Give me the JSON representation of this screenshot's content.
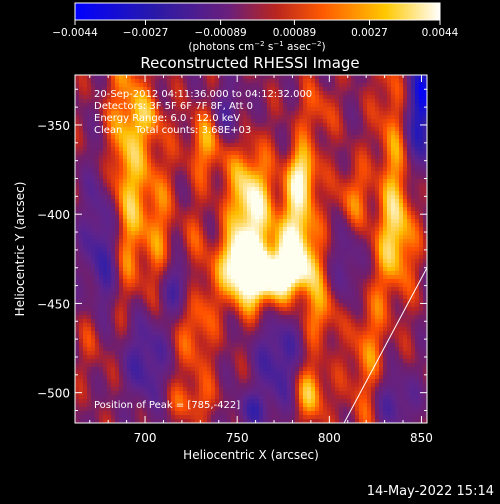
{
  "colorbar": {
    "tick_labels": [
      "−0.0044",
      "−0.0027",
      "−0.00089",
      "0.00089",
      "0.0027",
      "0.0044"
    ],
    "tick_values": [
      -0.0044,
      -0.0027,
      -0.00089,
      0.00089,
      0.0027,
      0.0044
    ],
    "range": [
      -0.0044,
      0.0044
    ],
    "unit_label_parts": [
      "(photons cm",
      "−2",
      " s",
      "−1",
      " asec",
      "−2",
      ")"
    ],
    "colors": [
      "#0000ff",
      "#3a1a9c",
      "#6f1f7a",
      "#c42c1e",
      "#ff6a00",
      "#ffd400",
      "#ffffff"
    ]
  },
  "chart_data": {
    "type": "heatmap",
    "title": "Reconstructed RHESSI Image",
    "xlabel": "Heliocentric X (arcsec)",
    "ylabel": "Heliocentric Y (arcsec)",
    "xlim": [
      662,
      853
    ],
    "ylim": [
      -517,
      -322
    ],
    "x_ticks": [
      700,
      750,
      800,
      850
    ],
    "y_ticks": [
      -350,
      -400,
      -450,
      -500
    ],
    "x_tick_labels": [
      "700",
      "750",
      "800",
      "850"
    ],
    "y_tick_labels": [
      "−350",
      "−400",
      "−450",
      "−500"
    ],
    "info_lines": [
      "20-Sep-2012 04:11:36.000 to 04:12:32.000",
      "Detectors: 3F 5F 6F 7F 8F, Att 0",
      "Energy Range: 6.0 - 12.0 keV",
      "Clean    Total counts: 3.68E+03"
    ],
    "peak_label": "Position of Peak = [785,-422]",
    "peak_position": [
      785,
      -422
    ],
    "limb_line": [
      [
        808,
        -517
      ],
      [
        853,
        -430
      ]
    ]
  },
  "footer": {
    "timestamp": "14-May-2022 15:14"
  }
}
